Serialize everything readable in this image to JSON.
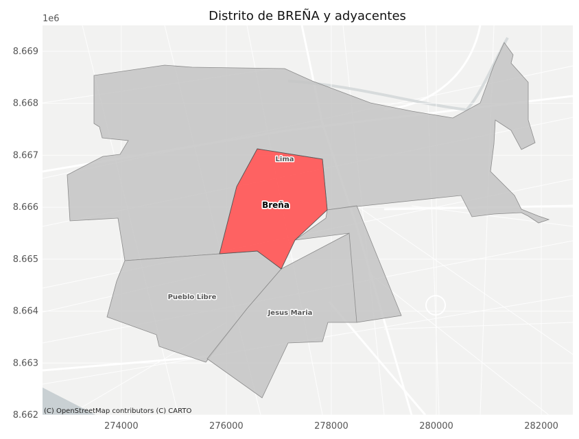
{
  "title": "Distrito de BREÑA y adyacentes",
  "y_offset_label": "1e6",
  "attribution": "(C) OpenStreetMap contributors (C) CARTO",
  "x_ticks": [
    "274000",
    "276000",
    "278000",
    "280000",
    "282000"
  ],
  "y_ticks": [
    "8.662",
    "8.663",
    "8.664",
    "8.665",
    "8.666",
    "8.667",
    "8.668",
    "8.669"
  ],
  "districts": {
    "lima": "Lima",
    "brena": "Breña",
    "pueblo_libre": "Pueblo Libre",
    "jesus_maria": "Jesus Maria"
  },
  "colors": {
    "focus": "#ff4d4d",
    "adjacent": "#c4c4c4",
    "basemap": "#f2f2f1",
    "grid": "#ffffff"
  },
  "chart_data": {
    "type": "map",
    "title": "Distrito de BREÑA y adyacentes",
    "xlim": [
      272500,
      282600
    ],
    "ylim": [
      8662000,
      8669500
    ],
    "x_ticks": [
      274000,
      276000,
      278000,
      280000,
      282000
    ],
    "y_ticks": [
      8662000,
      8663000,
      8664000,
      8665000,
      8666000,
      8667000,
      8668000,
      8669000
    ],
    "y_axis_multiplier": "1e6",
    "grid": true,
    "highlighted": "Breña",
    "regions": [
      {
        "name": "Breña",
        "color": "#ff4d4d"
      },
      {
        "name": "Lima",
        "color": "#c4c4c4"
      },
      {
        "name": "Pueblo Libre",
        "color": "#c4c4c4"
      },
      {
        "name": "Jesus Maria",
        "color": "#c4c4c4"
      }
    ]
  }
}
